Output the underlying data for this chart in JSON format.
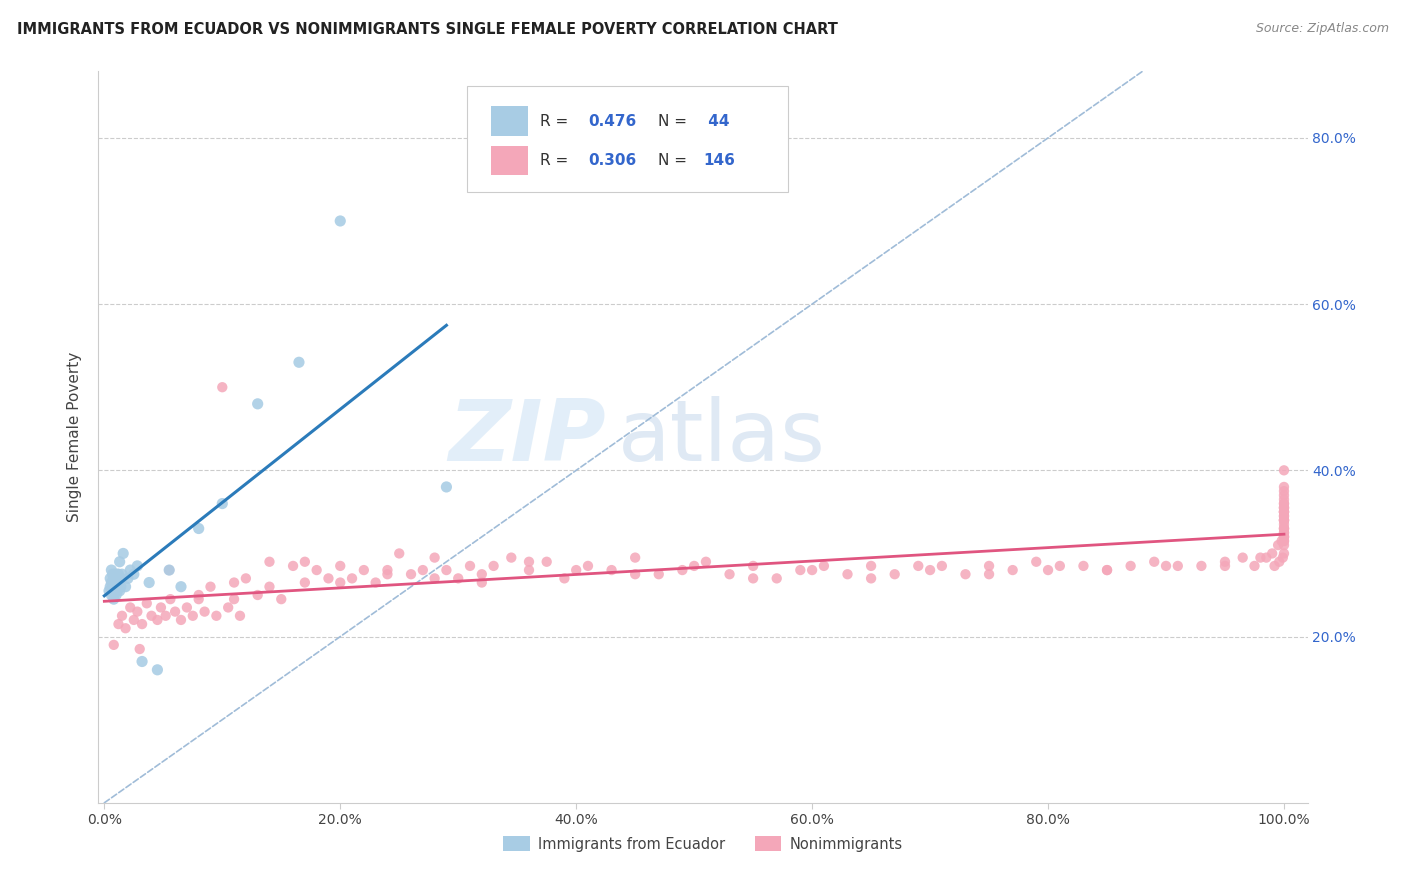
{
  "title": "IMMIGRANTS FROM ECUADOR VS NONIMMIGRANTS SINGLE FEMALE POVERTY CORRELATION CHART",
  "source": "Source: ZipAtlas.com",
  "ylabel": "Single Female Poverty",
  "blue_R": 0.476,
  "blue_N": 44,
  "pink_R": 0.306,
  "pink_N": 146,
  "blue_color": "#a8cce4",
  "pink_color": "#f4a7b9",
  "blue_line_color": "#2b7bba",
  "pink_line_color": "#e05580",
  "diagonal_color": "#a0bcd8",
  "watermark_zip": "ZIP",
  "watermark_atlas": "atlas",
  "legend_label_blue": "Immigrants from Ecuador",
  "legend_label_pink": "Nonimmigrants",
  "blue_x": [
    0.004,
    0.005,
    0.005,
    0.006,
    0.006,
    0.006,
    0.007,
    0.007,
    0.007,
    0.008,
    0.008,
    0.008,
    0.009,
    0.009,
    0.009,
    0.01,
    0.01,
    0.01,
    0.011,
    0.011,
    0.011,
    0.012,
    0.012,
    0.013,
    0.013,
    0.014,
    0.015,
    0.016,
    0.018,
    0.02,
    0.022,
    0.025,
    0.028,
    0.032,
    0.038,
    0.045,
    0.055,
    0.065,
    0.08,
    0.1,
    0.13,
    0.165,
    0.2,
    0.29
  ],
  "blue_y": [
    0.255,
    0.26,
    0.27,
    0.25,
    0.265,
    0.28,
    0.255,
    0.265,
    0.275,
    0.245,
    0.26,
    0.27,
    0.255,
    0.265,
    0.275,
    0.25,
    0.265,
    0.27,
    0.255,
    0.265,
    0.275,
    0.26,
    0.275,
    0.255,
    0.29,
    0.26,
    0.275,
    0.3,
    0.26,
    0.27,
    0.28,
    0.275,
    0.285,
    0.17,
    0.265,
    0.16,
    0.28,
    0.26,
    0.33,
    0.36,
    0.48,
    0.53,
    0.7,
    0.38
  ],
  "pink_x": [
    0.008,
    0.012,
    0.015,
    0.018,
    0.022,
    0.025,
    0.028,
    0.032,
    0.036,
    0.04,
    0.045,
    0.048,
    0.052,
    0.056,
    0.06,
    0.065,
    0.07,
    0.075,
    0.08,
    0.085,
    0.09,
    0.095,
    0.1,
    0.105,
    0.11,
    0.115,
    0.12,
    0.13,
    0.14,
    0.15,
    0.16,
    0.17,
    0.18,
    0.19,
    0.2,
    0.21,
    0.22,
    0.23,
    0.24,
    0.25,
    0.26,
    0.27,
    0.28,
    0.29,
    0.3,
    0.31,
    0.32,
    0.33,
    0.345,
    0.36,
    0.375,
    0.39,
    0.41,
    0.43,
    0.45,
    0.47,
    0.49,
    0.51,
    0.53,
    0.55,
    0.57,
    0.59,
    0.61,
    0.63,
    0.65,
    0.67,
    0.69,
    0.71,
    0.73,
    0.75,
    0.77,
    0.79,
    0.81,
    0.83,
    0.85,
    0.87,
    0.89,
    0.91,
    0.93,
    0.95,
    0.965,
    0.975,
    0.985,
    0.992,
    0.996,
    0.999,
    1.0,
    0.03,
    0.055,
    0.08,
    0.11,
    0.14,
    0.17,
    0.2,
    0.24,
    0.28,
    0.32,
    0.36,
    0.4,
    0.45,
    0.5,
    0.55,
    0.6,
    0.65,
    0.7,
    0.75,
    0.8,
    0.85,
    0.9,
    0.95,
    0.98,
    0.99,
    0.995,
    0.998,
    1.0,
    1.0,
    1.0,
    1.0,
    1.0,
    1.0,
    1.0,
    1.0,
    1.0,
    1.0,
    1.0,
    1.0,
    1.0,
    1.0,
    1.0,
    1.0,
    1.0,
    1.0,
    1.0,
    1.0,
    1.0,
    1.0,
    1.0,
    1.0,
    1.0,
    1.0,
    1.0,
    1.0,
    1.0,
    1.0,
    1.0,
    1.0
  ],
  "pink_y": [
    0.19,
    0.215,
    0.225,
    0.21,
    0.235,
    0.22,
    0.23,
    0.215,
    0.24,
    0.225,
    0.22,
    0.235,
    0.225,
    0.245,
    0.23,
    0.22,
    0.235,
    0.225,
    0.25,
    0.23,
    0.26,
    0.225,
    0.5,
    0.235,
    0.245,
    0.225,
    0.27,
    0.25,
    0.29,
    0.245,
    0.285,
    0.265,
    0.28,
    0.27,
    0.285,
    0.27,
    0.28,
    0.265,
    0.275,
    0.3,
    0.275,
    0.28,
    0.295,
    0.28,
    0.27,
    0.285,
    0.275,
    0.285,
    0.295,
    0.28,
    0.29,
    0.27,
    0.285,
    0.28,
    0.295,
    0.275,
    0.28,
    0.29,
    0.275,
    0.285,
    0.27,
    0.28,
    0.285,
    0.275,
    0.285,
    0.275,
    0.285,
    0.285,
    0.275,
    0.285,
    0.28,
    0.29,
    0.285,
    0.285,
    0.28,
    0.285,
    0.29,
    0.285,
    0.285,
    0.29,
    0.295,
    0.285,
    0.295,
    0.285,
    0.29,
    0.295,
    0.3,
    0.185,
    0.28,
    0.245,
    0.265,
    0.26,
    0.29,
    0.265,
    0.28,
    0.27,
    0.265,
    0.29,
    0.28,
    0.275,
    0.285,
    0.27,
    0.28,
    0.27,
    0.28,
    0.275,
    0.28,
    0.28,
    0.285,
    0.285,
    0.295,
    0.3,
    0.31,
    0.315,
    0.32,
    0.325,
    0.33,
    0.32,
    0.315,
    0.31,
    0.32,
    0.33,
    0.325,
    0.315,
    0.34,
    0.335,
    0.33,
    0.345,
    0.34,
    0.35,
    0.355,
    0.34,
    0.35,
    0.355,
    0.34,
    0.36,
    0.35,
    0.345,
    0.355,
    0.37,
    0.375,
    0.365,
    0.35,
    0.36,
    0.38,
    0.4
  ]
}
